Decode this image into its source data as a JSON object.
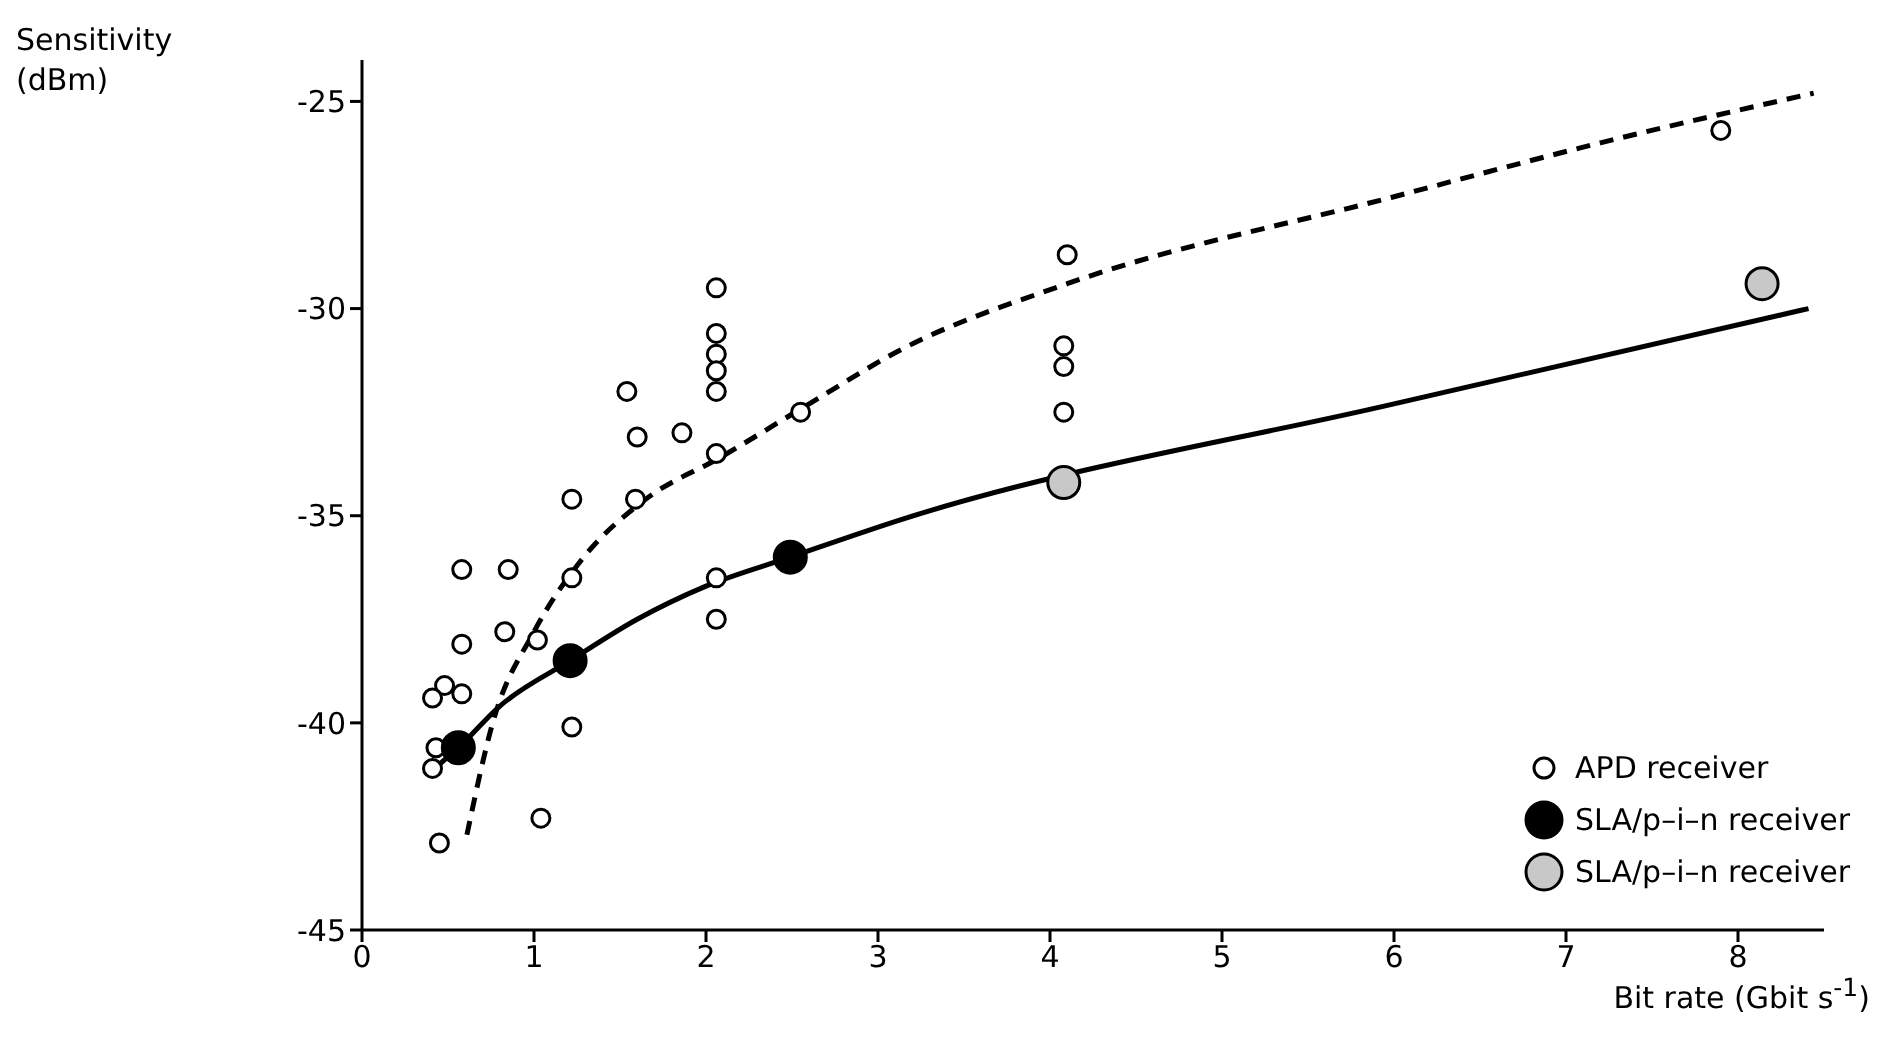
{
  "chart_data": {
    "type": "scatter",
    "xlabel": "Bit rate (Gbit s$^{-1}$)",
    "ylabel": "Sensitivity (dBm)",
    "xlim": [
      0,
      8.5
    ],
    "xticks": [
      0,
      1,
      2,
      3,
      4,
      5,
      6,
      7,
      8
    ],
    "ylim": [
      -45,
      -24
    ],
    "yticks": [
      -45,
      -40,
      -35,
      -30,
      -25
    ],
    "grid": false,
    "legend": "bottom right",
    "marker": "circle",
    "series": [
      {
        "type": "line",
        "color": "#000000",
        "line_style": "dashed",
        "marker": "none",
        "x": [
          0.61,
          0.76,
          1.0,
          1.27,
          1.65,
          2.08,
          2.6,
          3.13,
          4.1,
          6.0,
          7.2,
          8.44
        ],
        "values": [
          -42.7,
          -40.0,
          -37.8,
          -36.1,
          -34.6,
          -33.6,
          -32.3,
          -31.0,
          -29.4,
          -27.3,
          -26.0,
          -24.8
        ]
      },
      {
        "type": "line",
        "color": "#000000",
        "line_style": "solid",
        "marker": "none",
        "x": [
          0.45,
          0.56,
          0.8,
          1.21,
          1.6,
          2.0,
          2.49,
          3.13,
          6.0,
          8.41
        ],
        "values": [
          -41.0,
          -40.6,
          -39.6,
          -38.5,
          -37.5,
          -36.7,
          -36.0,
          -35.1,
          -32.3,
          -30.0
        ]
      },
      {
        "name": "APD receiver",
        "color": "#ffffff",
        "x": [
          2.06,
          2.06,
          2.06,
          2.06,
          2.06,
          1.54,
          1.6,
          1.86,
          2.06,
          2.55,
          1.22,
          1.59,
          0.58,
          0.85,
          1.22,
          2.06,
          2.06,
          0.83,
          0.58,
          1.02,
          0.48,
          0.58,
          0.41,
          1.22,
          0.43,
          0.41,
          1.04,
          0.45,
          4.1,
          4.08,
          4.08,
          4.08,
          7.9
        ],
        "values": [
          -29.5,
          -30.6,
          -31.1,
          -31.5,
          -32.0,
          -32.0,
          -33.1,
          -33.0,
          -33.5,
          -32.5,
          -34.6,
          -34.6,
          -36.3,
          -36.3,
          -36.5,
          -36.5,
          -37.5,
          -37.8,
          -38.1,
          -38.0,
          -39.1,
          -39.3,
          -39.4,
          -40.1,
          -40.6,
          -41.1,
          -42.3,
          -42.9,
          -28.7,
          -30.9,
          -31.4,
          -32.5,
          -25.7
        ]
      },
      {
        "name": "SLA/p–i–n receiver",
        "color": "#000000",
        "x": [
          0.56,
          1.21,
          2.49
        ],
        "values": [
          -40.6,
          -38.5,
          -36.0
        ]
      },
      {
        "name": "SLA/p–i–n receiver",
        "color": "#c8c8c8",
        "x": [
          4.08,
          8.14
        ],
        "values": [
          -34.2,
          -29.4
        ]
      }
    ]
  }
}
